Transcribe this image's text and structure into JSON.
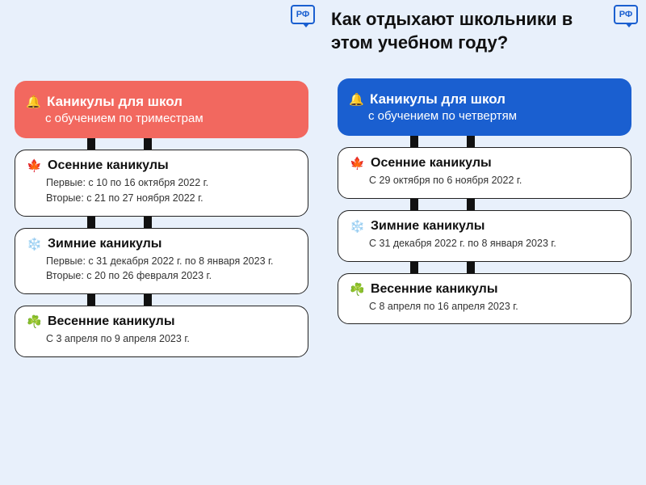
{
  "logo_text": "РФ",
  "colors": {
    "panel_left_bg": "#e8f0fb",
    "panel_right_bg": "#e8f0fb",
    "header_left_bg": "#f2685f",
    "header_right_bg": "#1a5fd0",
    "logo_color": "#1a5fd0"
  },
  "icons": {
    "bell": "🔔",
    "autumn": "🍁",
    "winter": "❄️",
    "spring": "☘️"
  },
  "left": {
    "header_title": "Каникулы для школ",
    "header_sub": "с обучением по триместрам",
    "cards": [
      {
        "icon": "autumn",
        "title": "Осенние каникулы",
        "lines": [
          "Первые: с 10 по 16 октября 2022 г.",
          "Вторые: с 21 по 27 ноября 2022 г."
        ]
      },
      {
        "icon": "winter",
        "title": "Зимние каникулы",
        "lines": [
          "Первые: с 31 декабря 2022 г. по 8 января 2023 г.",
          "Вторые: с 20 по 26 февраля 2023 г."
        ]
      },
      {
        "icon": "spring",
        "title": "Весенние каникулы",
        "lines": [
          "С 3 апреля по 9 апреля 2023 г."
        ]
      }
    ]
  },
  "right": {
    "page_title": "Как отдыхают школьники в этом учебном году?",
    "header_title": "Каникулы для школ",
    "header_sub": "с обучением по четвертям",
    "cards": [
      {
        "icon": "autumn",
        "title": "Осенние каникулы",
        "lines": [
          "С 29 октября по 6 ноября 2022 г."
        ]
      },
      {
        "icon": "winter",
        "title": "Зимние каникулы",
        "lines": [
          "С 31 декабря 2022 г. по 8 января 2023 г."
        ]
      },
      {
        "icon": "spring",
        "title": "Весенние каникулы",
        "lines": [
          "С 8 апреля по 16 апреля 2023 г."
        ]
      }
    ]
  }
}
